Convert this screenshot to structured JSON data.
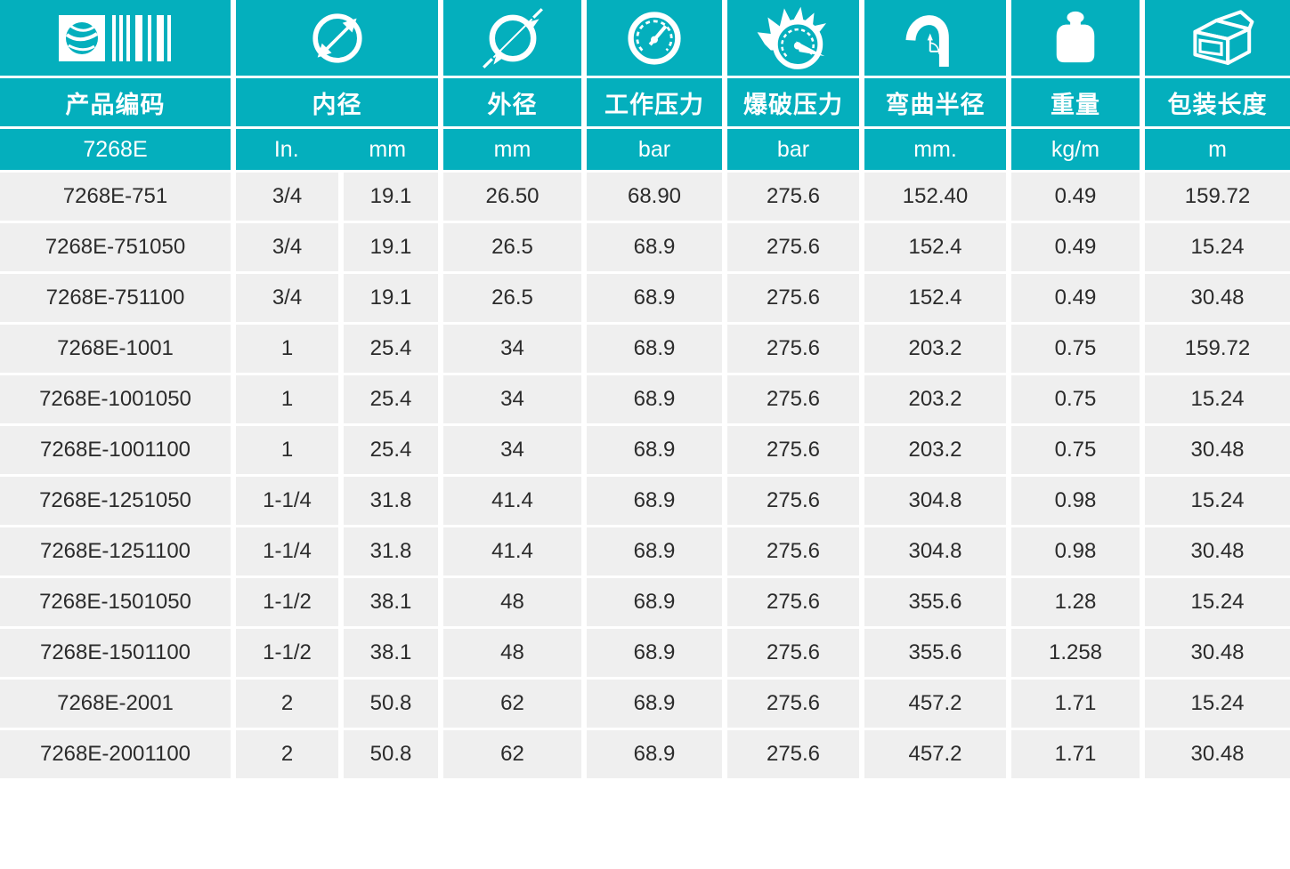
{
  "theme": {
    "teal": "#04AFBD",
    "row_bg": "#EFEFEF",
    "text_dark": "#2B2B2B",
    "white": "#FFFFFF"
  },
  "table": {
    "series_code": "7268E",
    "columns": [
      {
        "key": "code",
        "label": "产品编码",
        "unit": "7268E",
        "icon": "barcode-icon"
      },
      {
        "key": "inner_diameter",
        "label": "内径",
        "units": [
          "In.",
          "mm"
        ],
        "icon": "inner-diameter-icon"
      },
      {
        "key": "outer_diameter",
        "label": "外径",
        "unit": "mm",
        "icon": "outer-diameter-icon"
      },
      {
        "key": "working_pressure",
        "label": "工作压力",
        "unit": "bar",
        "icon": "working-pressure-icon"
      },
      {
        "key": "burst_pressure",
        "label": "爆破压力",
        "unit": "bar",
        "icon": "burst-pressure-icon"
      },
      {
        "key": "bend_radius",
        "label": "弯曲半径",
        "unit": "mm.",
        "icon": "bend-radius-icon"
      },
      {
        "key": "weight",
        "label": "重量",
        "unit": "kg/m",
        "icon": "weight-icon"
      },
      {
        "key": "package_length",
        "label": "包装长度",
        "unit": "m",
        "icon": "package-icon"
      }
    ],
    "rows": [
      [
        "7268E-751",
        "3/4",
        "19.1",
        "26.50",
        "68.90",
        "275.6",
        "152.40",
        "0.49",
        "159.72"
      ],
      [
        "7268E-751050",
        "3/4",
        "19.1",
        "26.5",
        "68.9",
        "275.6",
        "152.4",
        "0.49",
        "15.24"
      ],
      [
        "7268E-751100",
        "3/4",
        "19.1",
        "26.5",
        "68.9",
        "275.6",
        "152.4",
        "0.49",
        "30.48"
      ],
      [
        "7268E-1001",
        "1",
        "25.4",
        "34",
        "68.9",
        "275.6",
        "203.2",
        "0.75",
        "159.72"
      ],
      [
        "7268E-1001050",
        "1",
        "25.4",
        "34",
        "68.9",
        "275.6",
        "203.2",
        "0.75",
        "15.24"
      ],
      [
        "7268E-1001100",
        "1",
        "25.4",
        "34",
        "68.9",
        "275.6",
        "203.2",
        "0.75",
        "30.48"
      ],
      [
        "7268E-1251050",
        "1-1/4",
        "31.8",
        "41.4",
        "68.9",
        "275.6",
        "304.8",
        "0.98",
        "15.24"
      ],
      [
        "7268E-1251100",
        "1-1/4",
        "31.8",
        "41.4",
        "68.9",
        "275.6",
        "304.8",
        "0.98",
        "30.48"
      ],
      [
        "7268E-1501050",
        "1-1/2",
        "38.1",
        "48",
        "68.9",
        "275.6",
        "355.6",
        "1.28",
        "15.24"
      ],
      [
        "7268E-1501100",
        "1-1/2",
        "38.1",
        "48",
        "68.9",
        "275.6",
        "355.6",
        "1.258",
        "30.48"
      ],
      [
        "7268E-2001",
        "2",
        "50.8",
        "62",
        "68.9",
        "275.6",
        "457.2",
        "1.71",
        "15.24"
      ],
      [
        "7268E-2001100",
        "2",
        "50.8",
        "62",
        "68.9",
        "275.6",
        "457.2",
        "1.71",
        "30.48"
      ]
    ]
  }
}
